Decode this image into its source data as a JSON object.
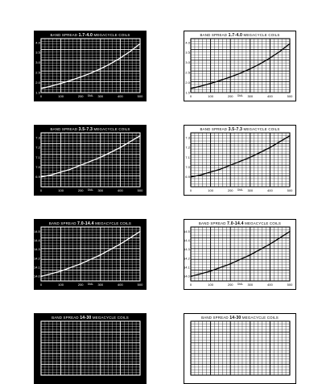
{
  "chart_data": [
    {
      "type": "line",
      "theme": "dark",
      "title_left": "BAND   SPREAD",
      "title_range": "1.7-4.0",
      "title_right": "MEGACYCLE   COILS",
      "xlabel": "DIAL",
      "xlim": [
        0,
        500
      ],
      "ylim": [
        1.5,
        4.2
      ],
      "xticks": [
        "0",
        "100",
        "200",
        "300",
        "400",
        "500"
      ],
      "yticks": [
        "1.5",
        "2.0",
        "2.5",
        "3.0",
        "3.5",
        "4.0"
      ],
      "x": [
        0,
        50,
        100,
        150,
        200,
        250,
        300,
        350,
        400,
        450,
        500
      ],
      "y": [
        1.7,
        1.82,
        1.96,
        2.11,
        2.28,
        2.47,
        2.69,
        2.94,
        3.23,
        3.56,
        3.95
      ]
    },
    {
      "type": "line",
      "theme": "light",
      "title_left": "BAND   SPREAD",
      "title_range": "1.7-4.0",
      "title_right": "MEGACYCLE   COILS",
      "xlabel": "DIAL",
      "xlim": [
        0,
        500
      ],
      "ylim": [
        1.5,
        4.2
      ],
      "xticks": [
        "0",
        "100",
        "200",
        "300",
        "400",
        "500"
      ],
      "yticks": [
        "1.5",
        "2.0",
        "2.5",
        "3.0",
        "3.5",
        "4.0"
      ],
      "x": [
        0,
        50,
        100,
        150,
        200,
        250,
        300,
        350,
        400,
        450,
        500
      ],
      "y": [
        1.7,
        1.82,
        1.96,
        2.11,
        2.28,
        2.47,
        2.69,
        2.94,
        3.23,
        3.56,
        3.95
      ]
    },
    {
      "type": "line",
      "theme": "dark",
      "title_left": "BAND   SPREAD",
      "title_range": "3.5-7.3",
      "title_right": "MEGACYCLE   COILS",
      "xlabel": "DIAL",
      "xlim": [
        0,
        500
      ],
      "ylim": [
        6.8,
        7.35
      ],
      "xticks": [
        "0",
        "100",
        "200",
        "300",
        "400",
        "500"
      ],
      "yticks": [
        "6.9",
        "7.0",
        "7.1",
        "7.2",
        "7.3"
      ],
      "x": [
        0,
        50,
        100,
        150,
        200,
        250,
        300,
        350,
        400,
        450,
        500
      ],
      "y": [
        6.9,
        6.92,
        6.95,
        6.98,
        7.02,
        7.06,
        7.1,
        7.15,
        7.2,
        7.26,
        7.32
      ]
    },
    {
      "type": "line",
      "theme": "light",
      "title_left": "BAND   SPREAD",
      "title_range": "3.5-7.3",
      "title_right": "MEGACYCLE   COILS",
      "xlabel": "DIAL",
      "xlim": [
        0,
        500
      ],
      "ylim": [
        6.8,
        7.35
      ],
      "xticks": [
        "0",
        "100",
        "200",
        "300",
        "400",
        "500"
      ],
      "yticks": [
        "6.9",
        "7.0",
        "7.1",
        "7.2",
        "7.3"
      ],
      "x": [
        0,
        50,
        100,
        150,
        200,
        250,
        300,
        350,
        400,
        450,
        500
      ],
      "y": [
        6.9,
        6.92,
        6.95,
        6.98,
        7.02,
        7.06,
        7.1,
        7.15,
        7.2,
        7.26,
        7.32
      ]
    },
    {
      "type": "line",
      "theme": "dark",
      "title_left": "BAND   SPREAD",
      "title_range": "7.0-14.4",
      "title_right": "MEGACYCLE   COILS",
      "xlabel": "DIAL",
      "xlim": [
        0,
        500
      ],
      "ylim": [
        13.95,
        14.55
      ],
      "xticks": [
        "0",
        "100",
        "200",
        "300",
        "400",
        "500"
      ],
      "yticks": [
        "14.0",
        "14.1",
        "14.2",
        "14.3",
        "14.4",
        "14.5"
      ],
      "x": [
        0,
        50,
        100,
        150,
        200,
        250,
        300,
        350,
        400,
        450,
        500
      ],
      "y": [
        14.0,
        14.03,
        14.06,
        14.1,
        14.14,
        14.19,
        14.24,
        14.3,
        14.36,
        14.43,
        14.5
      ]
    },
    {
      "type": "line",
      "theme": "light",
      "title_left": "BAND   SPREAD",
      "title_range": "7.0-14.4",
      "title_right": "MEGACYCLE   COILS",
      "xlabel": "DIAL",
      "xlim": [
        0,
        500
      ],
      "ylim": [
        13.95,
        14.55
      ],
      "xticks": [
        "0",
        "100",
        "200",
        "300",
        "400",
        "500"
      ],
      "yticks": [
        "14.0",
        "14.1",
        "14.2",
        "14.3",
        "14.4",
        "14.5"
      ],
      "x": [
        0,
        50,
        100,
        150,
        200,
        250,
        300,
        350,
        400,
        450,
        500
      ],
      "y": [
        14.0,
        14.03,
        14.06,
        14.1,
        14.14,
        14.19,
        14.24,
        14.3,
        14.36,
        14.43,
        14.5
      ]
    },
    {
      "type": "line",
      "theme": "dark",
      "title_left": "BAND   SPREAD",
      "title_range": "14-30",
      "title_right": "MEGACYCLE   COILS",
      "xlabel": "DIAL",
      "xlim": [
        0,
        500
      ],
      "ylim": [
        14,
        30
      ],
      "xticks": [],
      "yticks": [],
      "x": [],
      "y": []
    },
    {
      "type": "line",
      "theme": "light",
      "title_left": "BAND   SPREAD",
      "title_range": "14-30",
      "title_right": "MEGACYCLE   COILS",
      "xlabel": "DIAL",
      "xlim": [
        0,
        500
      ],
      "ylim": [
        14,
        30
      ],
      "xticks": [],
      "yticks": [],
      "x": [],
      "y": []
    }
  ]
}
